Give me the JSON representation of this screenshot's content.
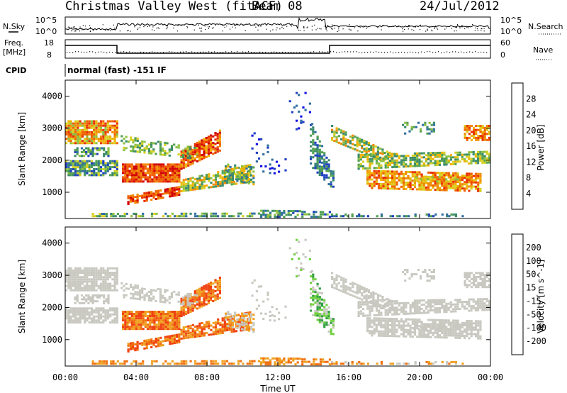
{
  "header": {
    "title": "Christmas Valley West (fitACF)",
    "beam": "Beam 08",
    "date": "24/Jul/2012"
  },
  "strips": {
    "nsky_label": "N.Sky",
    "nsky_ticks": [
      "10^5",
      "10^0"
    ],
    "nsearch_label": "N.Search",
    "nsearch_ticks": [
      "10^5",
      "10^0"
    ],
    "freq_label_1": "Freq.",
    "freq_label_2": "[MHz]",
    "freq_ticks": [
      "18",
      "8"
    ],
    "nave_label": "Nave",
    "nave_ticks": [
      "60",
      "0"
    ],
    "cpid_label": "CPID",
    "cpid_text": "normal (fast) -151 IF"
  },
  "colors": {
    "power": [
      "#1010e0",
      "#2040c0",
      "#2f6f9f",
      "#3a8a6a",
      "#50a050",
      "#8cc040",
      "#d8d020",
      "#f0b000",
      "#f08a00",
      "#f06000",
      "#e83000",
      "#d00000"
    ],
    "velocity": [
      "#2020c0",
      "#2060a0",
      "#30a040",
      "#70d040",
      "#c8c8c0",
      "#c8c8c0",
      "#f0a020",
      "#f07010",
      "#f04010",
      "#e00000"
    ]
  },
  "chart_data": [
    {
      "type": "heatmap",
      "name": "power",
      "ylabel": "Slant Range [km]",
      "yticks": [
        "4000",
        "3000",
        "2000",
        "1000"
      ],
      "ylim": [
        180,
        4500
      ],
      "xlim": [
        "00:00",
        "24:00"
      ],
      "colorbar_label": "Power [dB]",
      "colorbar_ticks": [
        "28",
        "24",
        "20",
        "16",
        "12",
        "8",
        "4"
      ],
      "colorbar_range": [
        0,
        32
      ]
    },
    {
      "type": "heatmap",
      "name": "velocity",
      "ylabel": "Slant Range [km]",
      "yticks": [
        "4000",
        "3000",
        "2000",
        "1000"
      ],
      "ylim": [
        180,
        4500
      ],
      "xlim": [
        "00:00",
        "24:00"
      ],
      "xticks": [
        "00:00",
        "04:00",
        "08:00",
        "12:00",
        "16:00",
        "20:00",
        "00:00"
      ],
      "xlabel": "Time UT",
      "colorbar_label": "Velocity [m s^-1]",
      "colorbar_ticks": [
        "200",
        "100",
        "50",
        "15",
        "-15",
        "-50",
        "-100",
        "-200"
      ]
    }
  ]
}
